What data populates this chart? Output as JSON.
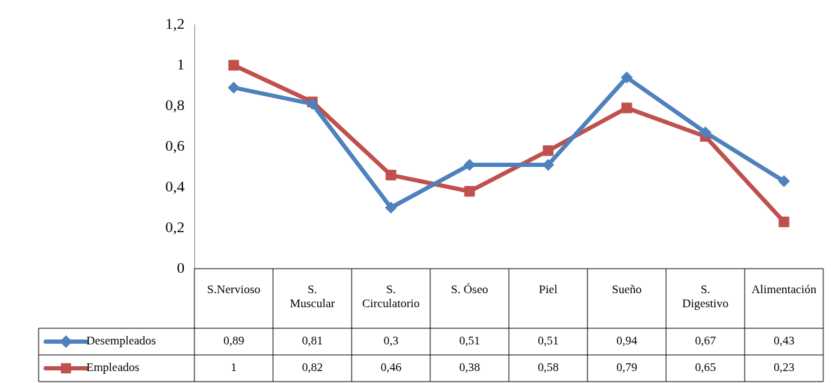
{
  "chart_data": {
    "type": "line",
    "categories": [
      "S.Nervioso",
      "S. Muscular",
      "S. Circulatorio",
      "S. Óseo",
      "Piel",
      "Sueño",
      "S. Digestivo",
      "Alimentación"
    ],
    "series": [
      {
        "name": "Desempleados",
        "color": "#4f81bd",
        "marker": "diamond",
        "values": [
          0.89,
          0.81,
          0.3,
          0.51,
          0.51,
          0.94,
          0.67,
          0.43
        ],
        "value_labels": [
          "0,89",
          "0,81",
          "0,3",
          "0,51",
          "0,51",
          "0,94",
          "0,67",
          "0,43"
        ]
      },
      {
        "name": "Empleados",
        "color": "#c0504d",
        "marker": "square",
        "values": [
          1,
          0.82,
          0.46,
          0.38,
          0.58,
          0.79,
          0.65,
          0.23
        ],
        "value_labels": [
          "1",
          "0,82",
          "0,46",
          "0,38",
          "0,58",
          "0,79",
          "0,65",
          "0,23"
        ]
      }
    ],
    "ylim": [
      0,
      1.2
    ],
    "yticks": [
      0,
      {
        "value": 0.2,
        "label": "0,2"
      },
      {
        "value": 0.4,
        "label": "0,4"
      },
      {
        "value": 0.6,
        "label": "0,6"
      },
      {
        "value": 0.8,
        "label": "0,8"
      },
      1,
      {
        "value": 1.2,
        "label": "1,2"
      }
    ],
    "grid": false,
    "legend": "bottom left"
  }
}
